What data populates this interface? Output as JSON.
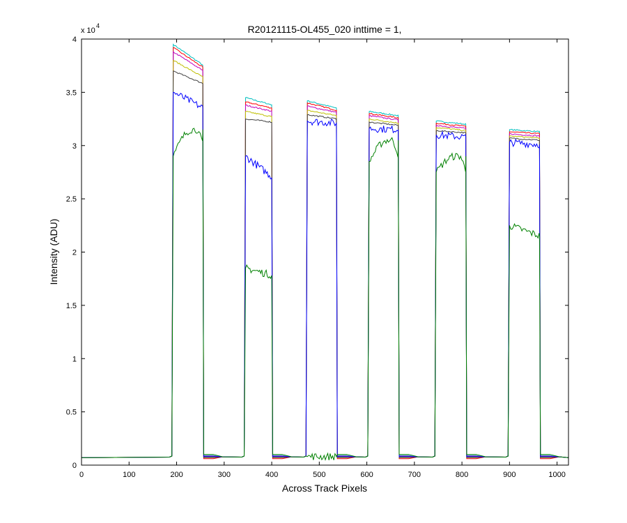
{
  "chart_data": {
    "type": "line",
    "title": "R20121115-OL455_020 inttime = 1,",
    "xlabel": "Across Track Pixels",
    "ylabel": "Intensity (ADU)",
    "y_multiplier_label": "x 10",
    "y_multiplier_exponent": "4",
    "xlim": [
      0,
      1024
    ],
    "ylim": [
      0,
      40000
    ],
    "x_ticks": [
      0,
      100,
      200,
      300,
      400,
      500,
      600,
      700,
      800,
      900,
      1000
    ],
    "x_tick_labels": [
      "0",
      "100",
      "200",
      "300",
      "400",
      "500",
      "600",
      "700",
      "800",
      "900",
      "1000"
    ],
    "y_ticks": [
      0,
      5000,
      10000,
      15000,
      20000,
      25000,
      30000,
      35000,
      40000
    ],
    "y_tick_labels": [
      "0",
      "0.5",
      "1",
      "1.5",
      "2",
      "2.5",
      "3",
      "3.5",
      "4"
    ],
    "grid": false,
    "baseline_level": 700,
    "blocks": [
      {
        "x_start": 193,
        "x_end": 257
      },
      {
        "x_start": 345,
        "x_end": 402
      },
      {
        "x_start": 475,
        "x_end": 538
      },
      {
        "x_start": 605,
        "x_end": 668
      },
      {
        "x_start": 746,
        "x_end": 810
      },
      {
        "x_start": 900,
        "x_end": 965
      }
    ],
    "series": [
      {
        "color": "#00bfbf",
        "plateaus": [
          [
            39500,
            37500
          ],
          [
            34500,
            33800
          ],
          [
            34200,
            33500
          ],
          [
            33200,
            32800
          ],
          [
            32300,
            32000
          ],
          [
            31500,
            31300
          ]
        ],
        "low_level": 900
      },
      {
        "color": "#ff0000",
        "plateaus": [
          [
            39200,
            37300
          ],
          [
            34100,
            33500
          ],
          [
            34000,
            33300
          ],
          [
            33000,
            32600
          ],
          [
            32100,
            31800
          ],
          [
            31300,
            31100
          ]
        ],
        "low_level": 600
      },
      {
        "color": "#bf00bf",
        "plateaus": [
          [
            38800,
            37000
          ],
          [
            33800,
            33200
          ],
          [
            33700,
            33100
          ],
          [
            32800,
            32400
          ],
          [
            31900,
            31600
          ],
          [
            31100,
            30900
          ]
        ],
        "low_level": 850
      },
      {
        "color": "#bfbf00",
        "plateaus": [
          [
            38000,
            36400
          ],
          [
            33200,
            32700
          ],
          [
            33300,
            32800
          ],
          [
            32500,
            32100
          ],
          [
            31700,
            31400
          ],
          [
            30900,
            30700
          ]
        ],
        "low_level": 750
      },
      {
        "color": "#404040",
        "plateaus": [
          [
            37000,
            35800
          ],
          [
            32500,
            32200
          ],
          [
            32900,
            32500
          ],
          [
            32200,
            31900
          ],
          [
            31400,
            31200
          ],
          [
            30700,
            30500
          ]
        ],
        "low_level": 700
      },
      {
        "color": "#0000ff",
        "plateaus": [
          [
            35000,
            33500
          ],
          [
            29000,
            27000
          ],
          [
            32300,
            32100
          ],
          [
            31600,
            31500
          ],
          [
            31000,
            30800
          ],
          [
            30300,
            30100
          ]
        ],
        "low_level": 800
      },
      {
        "color": "#008000",
        "plateaus": [
          [
            29000,
            31500
          ],
          [
            18500,
            17800
          ],
          [
            800,
            800
          ],
          [
            28500,
            30500
          ],
          [
            27500,
            29000
          ],
          [
            22500,
            21500
          ]
        ],
        "low_level": 1000
      }
    ]
  }
}
